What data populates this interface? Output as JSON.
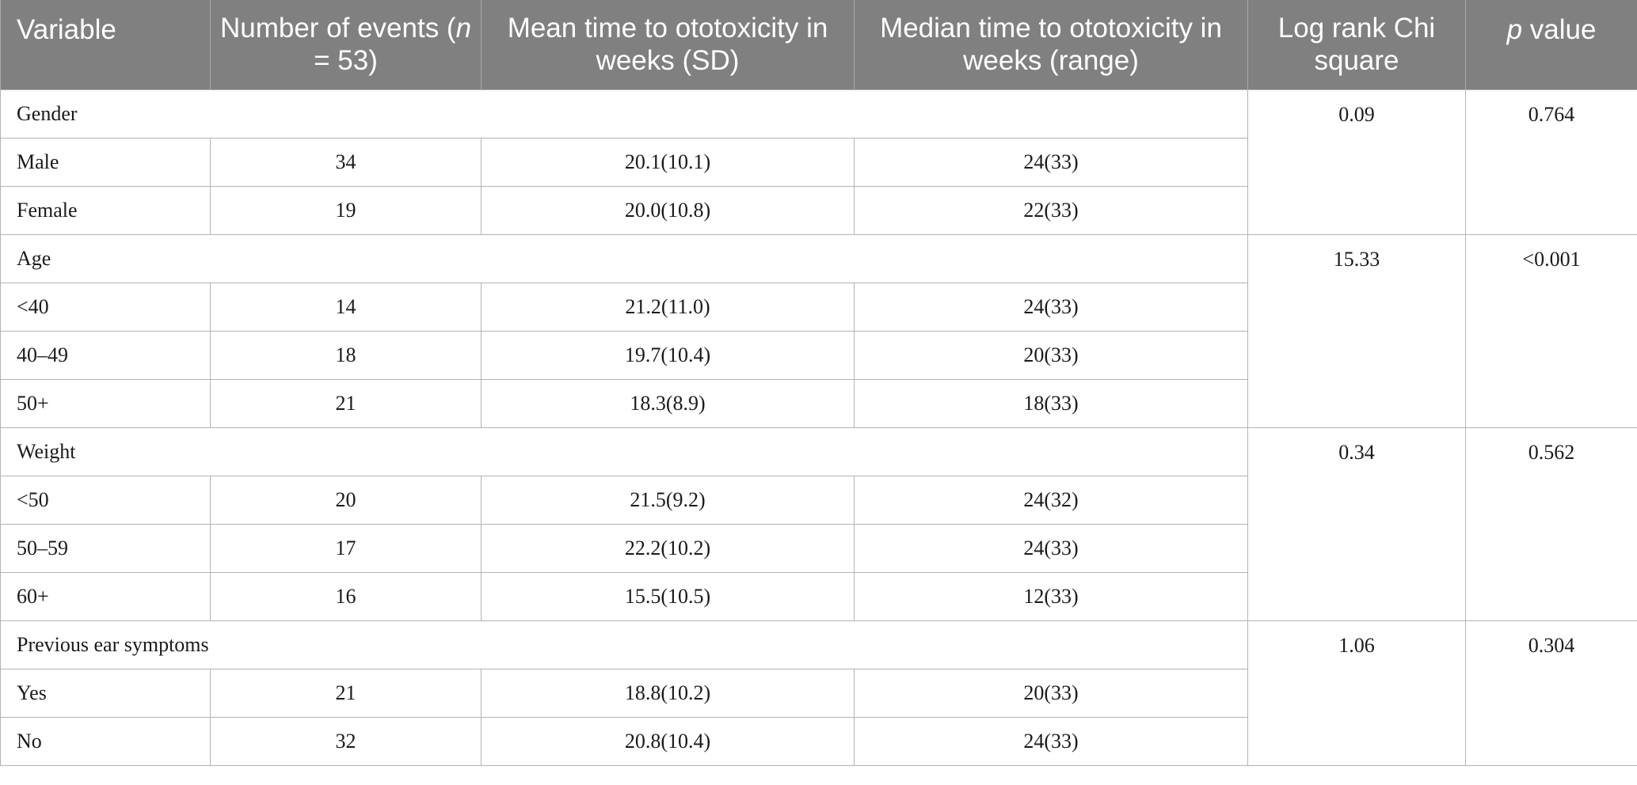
{
  "table": {
    "headers": {
      "variable": "Variable",
      "events_prefix": "Number of events (",
      "events_n": "n",
      "events_suffix": " = 53)",
      "mean_time": "Mean time to ototoxicity in weeks (SD)",
      "median_time": "Median time to ototoxicity in weeks (range)",
      "log_rank": "Log rank Chi square",
      "p_value_italic": "p",
      "p_value_rest": " value"
    },
    "groups": [
      {
        "name": "Gender",
        "chi_square": "0.09",
        "p_value": "0.764",
        "rows": [
          {
            "label": "Male",
            "events": "34",
            "mean": "20.1(10.1)",
            "median": "24(33)"
          },
          {
            "label": "Female",
            "events": "19",
            "mean": "20.0(10.8)",
            "median": "22(33)"
          }
        ]
      },
      {
        "name": "Age",
        "chi_square": "15.33",
        "p_value": "<0.001",
        "rows": [
          {
            "label": "<40",
            "events": "14",
            "mean": "21.2(11.0)",
            "median": "24(33)"
          },
          {
            "label": "40–49",
            "events": "18",
            "mean": "19.7(10.4)",
            "median": "20(33)"
          },
          {
            "label": "50+",
            "events": "21",
            "mean": "18.3(8.9)",
            "median": "18(33)"
          }
        ]
      },
      {
        "name": "Weight",
        "chi_square": "0.34",
        "p_value": "0.562",
        "rows": [
          {
            "label": "<50",
            "events": "20",
            "mean": "21.5(9.2)",
            "median": "24(32)"
          },
          {
            "label": "50–59",
            "events": "17",
            "mean": "22.2(10.2)",
            "median": "24(33)"
          },
          {
            "label": "60+",
            "events": "16",
            "mean": "15.5(10.5)",
            "median": "12(33)"
          }
        ]
      },
      {
        "name": "Previous ear symptoms",
        "chi_square": "1.06",
        "p_value": "0.304",
        "rows": [
          {
            "label": "Yes",
            "events": "21",
            "mean": "18.8(10.2)",
            "median": "20(33)"
          },
          {
            "label": "No",
            "events": "32",
            "mean": "20.8(10.4)",
            "median": "24(33)"
          }
        ]
      }
    ]
  }
}
